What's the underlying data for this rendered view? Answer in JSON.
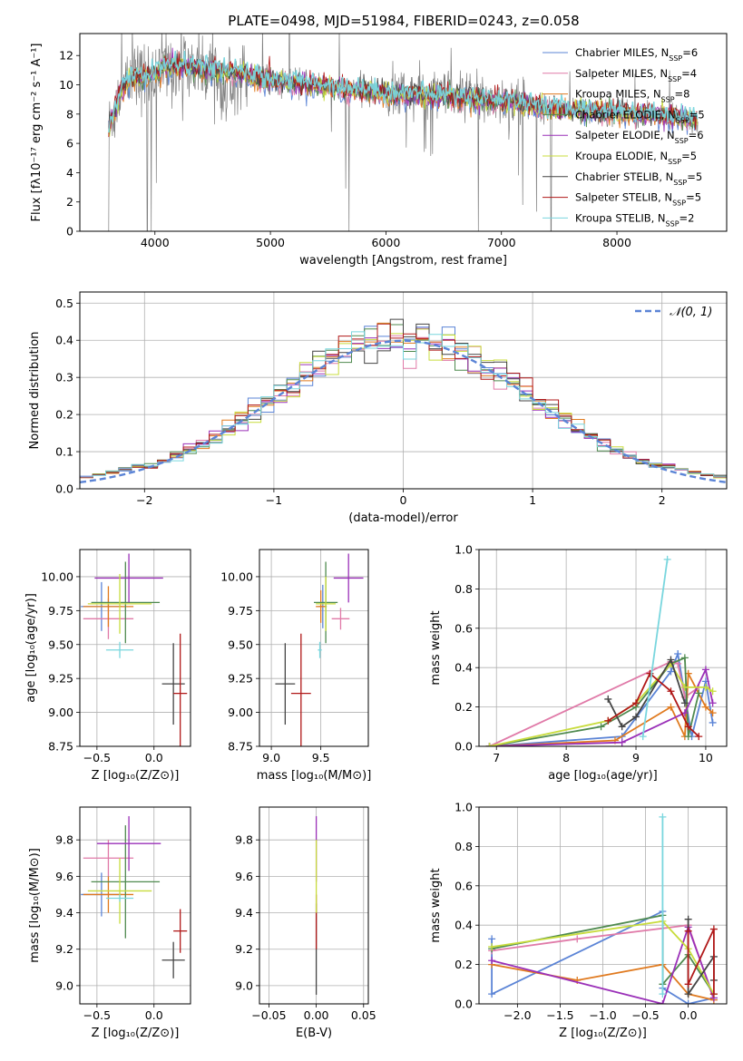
{
  "figure": {
    "title": "PLATE=0498, MJD=51984, FIBERID=0243, z=0.058"
  },
  "colors": {
    "Chabrier MILES": "#5b84d6",
    "Salpeter MILES": "#e07aa8",
    "Kroupa MILES": "#e07a1f",
    "Chabrier ELODIE": "#4f8a4f",
    "Salpeter ELODIE": "#9a30b8",
    "Kroupa ELODIE": "#c8dc3c",
    "Chabrier STELIB": "#444444",
    "Salpeter STELIB": "#b01818",
    "Kroupa STELIB": "#79d6de",
    "data": "#7f7f7f",
    "normal": "#5b84d6"
  },
  "chart_data": [
    {
      "id": "spectrum",
      "type": "line",
      "title": "",
      "xlabel": "wavelength [Angstrom, rest frame]",
      "ylabel": "Flux [fλ10⁻¹⁷ erg cm⁻² s⁻¹ A⁻¹]",
      "xlim": [
        3350,
        8950
      ],
      "ylim": [
        0,
        13.5
      ],
      "xticks": [
        4000,
        5000,
        6000,
        7000,
        8000
      ],
      "yticks": [
        0,
        2,
        4,
        6,
        8,
        10,
        12
      ],
      "grid": false,
      "legend_position": "top-right",
      "continuum": [
        [
          3600,
          7.0
        ],
        [
          3700,
          9.5
        ],
        [
          3800,
          10.5
        ],
        [
          3900,
          10.5
        ],
        [
          4000,
          10.8
        ],
        [
          4100,
          11.3
        ],
        [
          4300,
          11.2
        ],
        [
          4500,
          11.0
        ],
        [
          4700,
          10.8
        ],
        [
          5000,
          10.3
        ],
        [
          5500,
          9.9
        ],
        [
          6000,
          9.4
        ],
        [
          6500,
          9.2
        ],
        [
          7000,
          8.9
        ],
        [
          7500,
          8.3
        ],
        [
          8000,
          8.1
        ],
        [
          8500,
          7.8
        ],
        [
          8700,
          7.6
        ]
      ],
      "legend": [
        {
          "label": "Chabrier MILES, N",
          "nssp": "6",
          "sub": "SSP"
        },
        {
          "label": "Salpeter MILES, N",
          "nssp": "4",
          "sub": "SSP"
        },
        {
          "label": "Kroupa MILES, N",
          "nssp": "8",
          "sub": "SSP"
        },
        {
          "label": "Chabrier ELODIE, N",
          "nssp": "5",
          "sub": "SSP"
        },
        {
          "label": "Salpeter ELODIE, N",
          "nssp": "6",
          "sub": "SSP"
        },
        {
          "label": "Kroupa ELODIE, N",
          "nssp": "5",
          "sub": "SSP"
        },
        {
          "label": "Chabrier STELIB, N",
          "nssp": "5",
          "sub": "SSP"
        },
        {
          "label": "Salpeter STELIB, N",
          "nssp": "5",
          "sub": "SSP"
        },
        {
          "label": "Kroupa STELIB, N",
          "nssp": "2",
          "sub": "SSP"
        }
      ]
    },
    {
      "id": "residuals",
      "type": "area",
      "xlabel": "(data-model)/error",
      "ylabel": "Normed distribution",
      "xlim": [
        -2.5,
        2.5
      ],
      "ylim": [
        0,
        0.53
      ],
      "xticks": [
        -2,
        -1,
        0,
        1,
        2
      ],
      "yticks": [
        0.0,
        0.1,
        0.2,
        0.3,
        0.4,
        0.5
      ],
      "grid": true,
      "legend_position": "top-right",
      "legend_label": "𝒩(0, 1)",
      "bins": 50
    },
    {
      "id": "age_vs_z",
      "type": "scatter",
      "xlabel": "Z [log₁₀(Z/Z⊙)]",
      "ylabel": "age  [log₁₀(age/yr)]",
      "xlim": [
        -0.65,
        0.32
      ],
      "ylim": [
        8.75,
        10.2
      ],
      "xticks": [
        -0.5,
        0.0
      ],
      "yticks": [
        8.75,
        9.0,
        9.25,
        9.5,
        9.75,
        10.0
      ],
      "grid": true,
      "points": [
        {
          "model": "Chabrier MILES",
          "x": -0.46,
          "y": 9.78,
          "ex": 0.18,
          "ey": 0.18
        },
        {
          "model": "Salpeter MILES",
          "x": -0.4,
          "y": 9.69,
          "ex": 0.22,
          "ey": 0.15
        },
        {
          "model": "Kroupa MILES",
          "x": -0.4,
          "y": 9.78,
          "ex": 0.22,
          "ey": 0.15
        },
        {
          "model": "Chabrier ELODIE",
          "x": -0.25,
          "y": 9.81,
          "ex": 0.3,
          "ey": 0.3
        },
        {
          "model": "Salpeter ELODIE",
          "x": -0.22,
          "y": 9.99,
          "ex": 0.3,
          "ey": 0.18
        },
        {
          "model": "Kroupa ELODIE",
          "x": -0.3,
          "y": 9.8,
          "ex": 0.28,
          "ey": 0.22
        },
        {
          "model": "Chabrier STELIB",
          "x": 0.17,
          "y": 9.21,
          "ex": 0.1,
          "ey": 0.3
        },
        {
          "model": "Salpeter STELIB",
          "x": 0.23,
          "y": 9.14,
          "ex": 0.06,
          "ey": 0.44
        },
        {
          "model": "Kroupa STELIB",
          "x": -0.3,
          "y": 9.46,
          "ex": 0.12,
          "ey": 0.06
        }
      ]
    },
    {
      "id": "age_vs_mass",
      "type": "scatter",
      "xlabel": "mass [log₁₀(M/M⊙)]",
      "ylabel": "",
      "xlim": [
        8.88,
        9.98
      ],
      "ylim": [
        8.75,
        10.2
      ],
      "xticks": [
        9.0,
        9.5
      ],
      "yticks": [
        8.75,
        9.0,
        9.25,
        9.5,
        9.75,
        10.0
      ],
      "grid": true,
      "points": [
        {
          "model": "Chabrier MILES",
          "x": 9.52,
          "y": 9.78,
          "ex": 0.04,
          "ey": 0.16
        },
        {
          "model": "Salpeter MILES",
          "x": 9.7,
          "y": 9.69,
          "ex": 0.09,
          "ey": 0.08
        },
        {
          "model": "Kroupa MILES",
          "x": 9.5,
          "y": 9.78,
          "ex": 0.05,
          "ey": 0.12
        },
        {
          "model": "Chabrier ELODIE",
          "x": 9.55,
          "y": 9.81,
          "ex": 0.12,
          "ey": 0.3
        },
        {
          "model": "Salpeter ELODIE",
          "x": 9.78,
          "y": 9.99,
          "ex": 0.15,
          "ey": 0.18
        },
        {
          "model": "Kroupa ELODIE",
          "x": 9.55,
          "y": 9.8,
          "ex": 0.1,
          "ey": 0.2
        },
        {
          "model": "Chabrier STELIB",
          "x": 9.14,
          "y": 9.21,
          "ex": 0.1,
          "ey": 0.3
        },
        {
          "model": "Salpeter STELIB",
          "x": 9.3,
          "y": 9.14,
          "ex": 0.1,
          "ey": 0.44
        },
        {
          "model": "Kroupa STELIB",
          "x": 9.49,
          "y": 9.46,
          "ex": 0.02,
          "ey": 0.06
        }
      ]
    },
    {
      "id": "weight_vs_age",
      "type": "line",
      "xlabel": "age  [log₁₀(age/yr)]",
      "ylabel": "mass weight",
      "xlim": [
        6.75,
        10.3
      ],
      "ylim": [
        0.0,
        1.0
      ],
      "xticks": [
        7,
        8,
        9,
        10
      ],
      "yticks": [
        0.0,
        0.2,
        0.4,
        0.6,
        0.8,
        1.0
      ],
      "grid": true,
      "series": [
        {
          "model": "Chabrier MILES",
          "x": [
            6.9,
            8.8,
            9.5,
            9.6,
            9.8,
            10.0,
            10.1
          ],
          "y": [
            0.0,
            0.05,
            0.38,
            0.47,
            0.05,
            0.33,
            0.12
          ]
        },
        {
          "model": "Salpeter MILES",
          "x": [
            6.9,
            9.5,
            9.6,
            9.7,
            9.9
          ],
          "y": [
            0.0,
            0.43,
            0.42,
            0.25,
            0.3
          ]
        },
        {
          "model": "Kroupa MILES",
          "x": [
            6.9,
            8.7,
            9.5,
            9.7,
            9.75,
            10.0,
            10.1
          ],
          "y": [
            0.0,
            0.03,
            0.2,
            0.05,
            0.37,
            0.2,
            0.17
          ]
        },
        {
          "model": "Chabrier ELODIE",
          "x": [
            6.9,
            8.5,
            9.0,
            9.5,
            9.7,
            9.75,
            9.9
          ],
          "y": [
            0.0,
            0.1,
            0.2,
            0.42,
            0.45,
            0.05,
            0.27
          ]
        },
        {
          "model": "Salpeter ELODIE",
          "x": [
            6.9,
            8.8,
            9.7,
            10.0,
            10.1
          ],
          "y": [
            0.0,
            0.02,
            0.17,
            0.39,
            0.22
          ]
        },
        {
          "model": "Kroupa ELODIE",
          "x": [
            6.9,
            8.6,
            9.0,
            9.5,
            9.7,
            10.0,
            10.1
          ],
          "y": [
            0.0,
            0.13,
            0.22,
            0.42,
            0.3,
            0.3,
            0.28
          ]
        },
        {
          "model": "Chabrier STELIB",
          "x": [
            8.6,
            8.8,
            9.0,
            9.5,
            9.7
          ],
          "y": [
            0.24,
            0.1,
            0.15,
            0.44,
            0.22
          ]
        },
        {
          "model": "Salpeter STELIB",
          "x": [
            8.6,
            9.0,
            9.2,
            9.5,
            9.75,
            9.9
          ],
          "y": [
            0.13,
            0.22,
            0.37,
            0.28,
            0.1,
            0.05
          ]
        },
        {
          "model": "Kroupa STELIB",
          "x": [
            9.1,
            9.45
          ],
          "y": [
            0.05,
            0.95
          ]
        }
      ]
    },
    {
      "id": "mass_vs_z",
      "type": "scatter",
      "xlabel": "Z [log₁₀(Z/Z⊙)]",
      "ylabel": "mass [log₁₀(M/M⊙)]",
      "xlim": [
        -0.65,
        0.32
      ],
      "ylim": [
        8.9,
        9.98
      ],
      "xticks": [
        -0.5,
        0.0
      ],
      "yticks": [
        9.0,
        9.2,
        9.4,
        9.6,
        9.8
      ],
      "grid": true,
      "points": [
        {
          "model": "Chabrier MILES",
          "x": -0.46,
          "y": 9.5,
          "ex": 0.18,
          "ey": 0.12
        },
        {
          "model": "Salpeter MILES",
          "x": -0.4,
          "y": 9.7,
          "ex": 0.22,
          "ey": 0.1
        },
        {
          "model": "Kroupa MILES",
          "x": -0.4,
          "y": 9.5,
          "ex": 0.22,
          "ey": 0.1
        },
        {
          "model": "Chabrier ELODIE",
          "x": -0.25,
          "y": 9.57,
          "ex": 0.3,
          "ey": 0.31
        },
        {
          "model": "Salpeter ELODIE",
          "x": -0.22,
          "y": 9.78,
          "ex": 0.28,
          "ey": 0.15
        },
        {
          "model": "Kroupa ELODIE",
          "x": -0.3,
          "y": 9.52,
          "ex": 0.28,
          "ey": 0.18
        },
        {
          "model": "Chabrier STELIB",
          "x": 0.17,
          "y": 9.14,
          "ex": 0.1,
          "ey": 0.1
        },
        {
          "model": "Salpeter STELIB",
          "x": 0.23,
          "y": 9.3,
          "ex": 0.06,
          "ey": 0.12
        },
        {
          "model": "Kroupa STELIB",
          "x": -0.3,
          "y": 9.48,
          "ex": 0.12,
          "ey": 0.02
        }
      ]
    },
    {
      "id": "mass_vs_ebv",
      "type": "scatter",
      "xlabel": "E(B-V)",
      "ylabel": "",
      "xlim": [
        -0.06,
        0.055
      ],
      "ylim": [
        8.9,
        9.98
      ],
      "xticks": [
        -0.05,
        0.0,
        0.05
      ],
      "yticks": [
        9.0,
        9.2,
        9.4,
        9.6,
        9.8
      ],
      "grid": true,
      "points": [
        {
          "model": "Chabrier STELIB",
          "x": 0.0,
          "y": 9.2,
          "ex": 0.0,
          "ey": 0.25
        },
        {
          "model": "Salpeter STELIB",
          "x": 0.0,
          "y": 9.35,
          "ex": 0.0,
          "ey": 0.15
        },
        {
          "model": "Salpeter ELODIE",
          "x": 0.0,
          "y": 9.75,
          "ex": 0.0,
          "ey": 0.18
        },
        {
          "model": "Kroupa ELODIE",
          "x": 0.0,
          "y": 9.6,
          "ex": 0.0,
          "ey": 0.2
        }
      ]
    },
    {
      "id": "weight_vs_z",
      "type": "line",
      "xlabel": "Z [log₁₀(Z/Z⊙)]",
      "ylabel": "mass weight",
      "xlim": [
        -2.45,
        0.45
      ],
      "ylim": [
        0.0,
        1.0
      ],
      "xticks": [
        -2.0,
        -1.5,
        -1.0,
        -0.5,
        0.0
      ],
      "yticks": [
        0.0,
        0.2,
        0.4,
        0.6,
        0.8,
        1.0
      ],
      "grid": true,
      "series": [
        {
          "model": "Chabrier MILES",
          "x": [
            -2.3,
            -2.3,
            -0.3,
            -0.3,
            0.0,
            0.3
          ],
          "y": [
            0.33,
            0.05,
            0.47,
            0.08,
            0.0,
            0.03
          ]
        },
        {
          "model": "Salpeter MILES",
          "x": [
            -2.3,
            -1.3,
            0.0,
            0.3
          ],
          "y": [
            0.27,
            0.33,
            0.4,
            0.02
          ]
        },
        {
          "model": "Kroupa MILES",
          "x": [
            -2.3,
            -1.3,
            -0.3,
            0.0,
            0.3
          ],
          "y": [
            0.2,
            0.12,
            0.2,
            0.05,
            0.02
          ]
        },
        {
          "model": "Chabrier ELODIE",
          "x": [
            -2.3,
            -0.3,
            -0.3,
            0.0,
            0.3
          ],
          "y": [
            0.28,
            0.45,
            0.1,
            0.25,
            0.05
          ]
        },
        {
          "model": "Salpeter ELODIE",
          "x": [
            -2.3,
            -0.3,
            0.0,
            0.3
          ],
          "y": [
            0.22,
            0.0,
            0.39,
            0.03
          ]
        },
        {
          "model": "Kroupa ELODIE",
          "x": [
            -2.3,
            -0.3,
            0.0,
            0.3
          ],
          "y": [
            0.29,
            0.42,
            0.28,
            0.05
          ]
        },
        {
          "model": "Chabrier STELIB",
          "x": [
            0.0,
            0.0,
            0.3,
            0.3
          ],
          "y": [
            0.43,
            0.05,
            0.24,
            0.12
          ]
        },
        {
          "model": "Salpeter STELIB",
          "x": [
            0.0,
            0.0,
            0.3,
            0.3
          ],
          "y": [
            0.37,
            0.1,
            0.38,
            0.05
          ]
        },
        {
          "model": "Kroupa STELIB",
          "x": [
            -0.3,
            -0.3
          ],
          "y": [
            0.95,
            0.05
          ]
        }
      ]
    }
  ]
}
